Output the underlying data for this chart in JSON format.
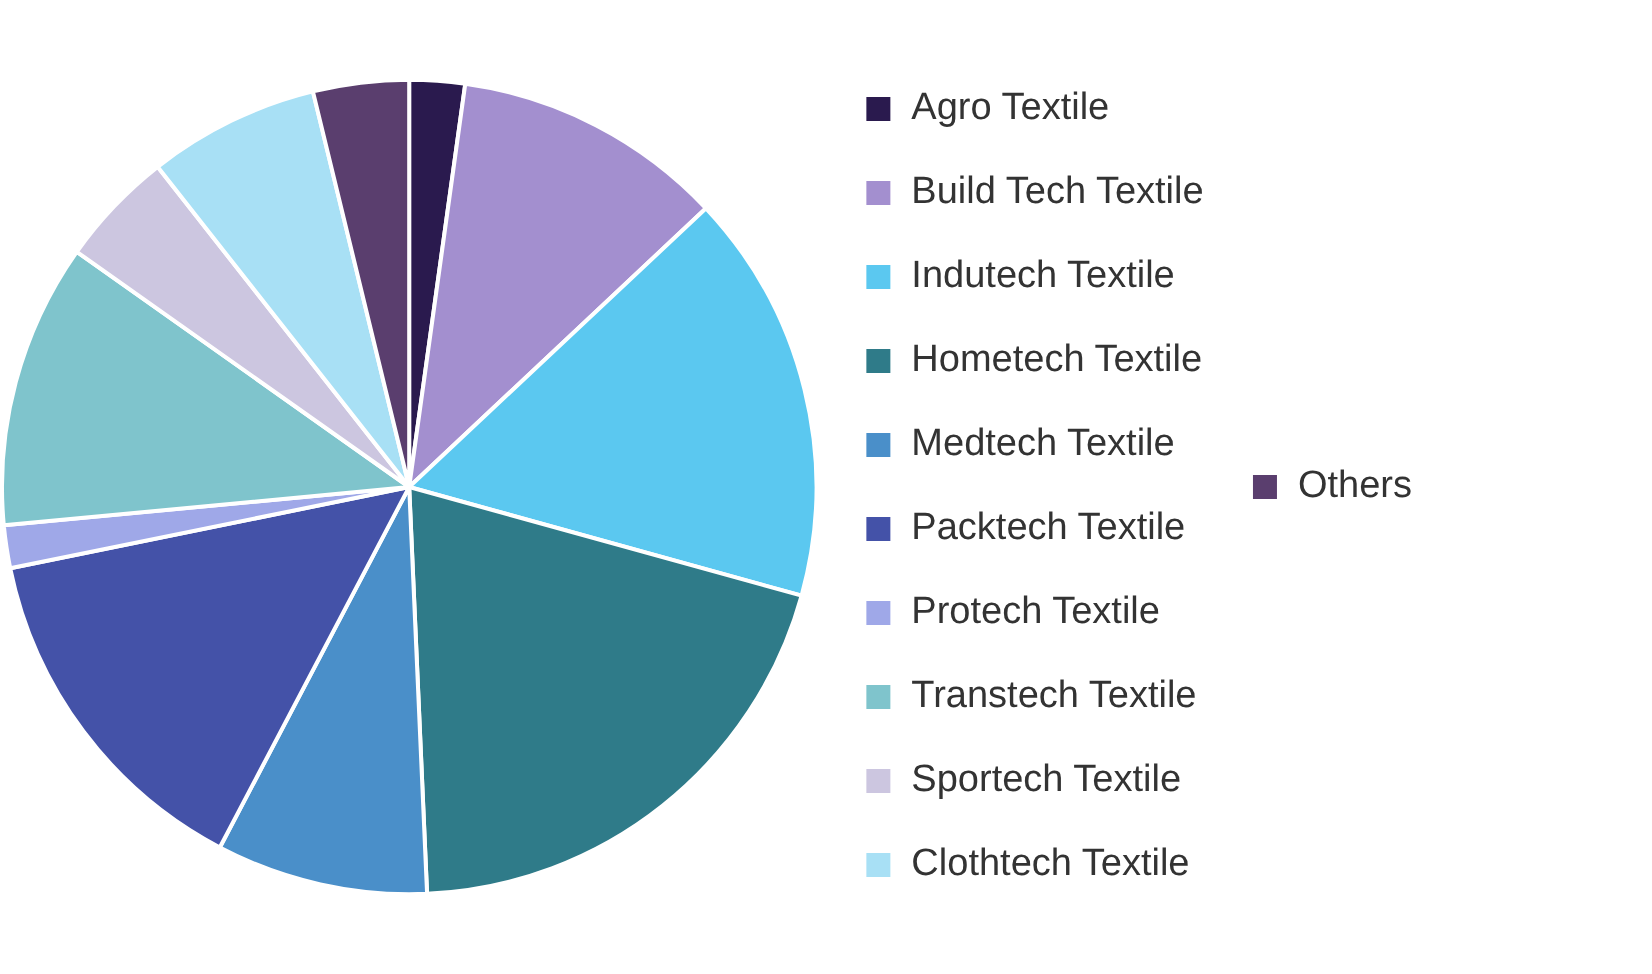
{
  "chart_data": {
    "type": "pie",
    "categories": [
      "Agro Textile",
      "Build Tech Textile",
      "Indutech Textile",
      "Hometech Textile",
      "Medtech Textile",
      "Packtech Textile",
      "Protech Textile",
      "Transtech Textile",
      "Sportech Textile",
      "Clothtech Textile",
      "Others"
    ],
    "values": [
      2.2,
      10.8,
      16.3,
      20.0,
      8.4,
      14.1,
      1.7,
      11.3,
      4.6,
      6.8,
      3.8
    ],
    "colors": [
      "#2a1a4e",
      "#a38fcf",
      "#5bc8f0",
      "#2f7b89",
      "#4a8fc9",
      "#4452a8",
      "#9fa8e8",
      "#7fc4cc",
      "#ccc6e0",
      "#a8e0f5",
      "#5a3e6e"
    ],
    "legend": "right"
  }
}
